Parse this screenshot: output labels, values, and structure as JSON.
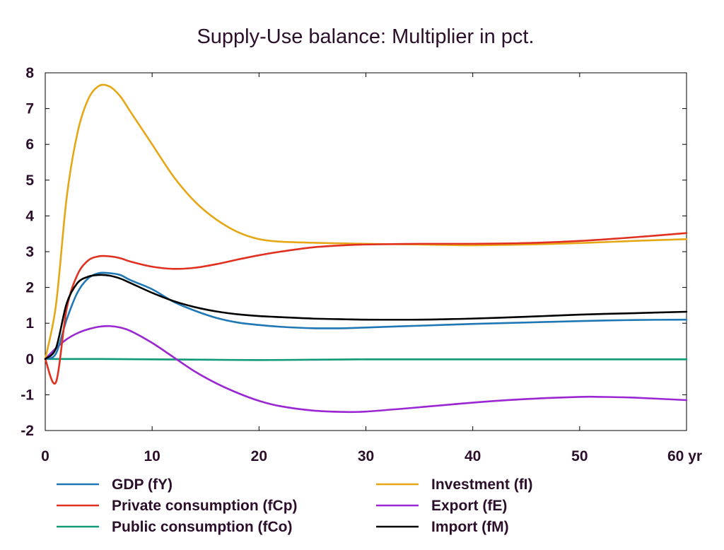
{
  "chart_data": {
    "type": "line",
    "title": "Supply-Use balance: Multiplier in pct.",
    "xlabel": "",
    "ylabel": "",
    "xlim": [
      0,
      60
    ],
    "ylim": [
      -2,
      8
    ],
    "x_ticks": [
      0,
      10,
      20,
      30,
      40,
      50,
      60
    ],
    "x_tick_labels": [
      "0",
      "10",
      "20",
      "30",
      "40",
      "50",
      "60 yr"
    ],
    "y_ticks": [
      -2,
      -1,
      0,
      1,
      2,
      3,
      4,
      5,
      6,
      7,
      8
    ],
    "y_tick_labels": [
      "-2",
      "-1",
      "0",
      "1",
      "2",
      "3",
      "4",
      "5",
      "6",
      "7",
      "8"
    ],
    "grid": false,
    "legend_position": "bottom",
    "series": [
      {
        "name": "GDP (fY)",
        "color": "#1f77b4",
        "x": [
          0,
          1,
          2,
          3,
          4,
          5,
          6,
          7,
          8,
          10,
          12,
          14,
          16,
          18,
          20,
          22,
          25,
          28,
          30,
          35,
          40,
          45,
          50,
          55,
          60
        ],
        "y": [
          0,
          0.15,
          1.1,
          1.85,
          2.25,
          2.4,
          2.4,
          2.35,
          2.2,
          1.95,
          1.6,
          1.35,
          1.15,
          1.02,
          0.95,
          0.9,
          0.86,
          0.86,
          0.88,
          0.93,
          0.98,
          1.02,
          1.06,
          1.09,
          1.1
        ]
      },
      {
        "name": "Investment (fI)",
        "color": "#e5a716",
        "x": [
          0,
          1,
          2,
          3,
          4,
          5,
          6,
          7,
          8,
          10,
          12,
          14,
          16,
          18,
          20,
          22,
          25,
          28,
          30,
          35,
          40,
          45,
          50,
          55,
          60
        ],
        "y": [
          0,
          1.5,
          4.5,
          6.3,
          7.25,
          7.63,
          7.62,
          7.35,
          6.9,
          6.0,
          5.1,
          4.4,
          3.9,
          3.55,
          3.35,
          3.28,
          3.25,
          3.23,
          3.22,
          3.2,
          3.18,
          3.2,
          3.24,
          3.3,
          3.35
        ]
      },
      {
        "name": "Private consumption (fCp)",
        "color": "#e03020",
        "x": [
          0,
          1,
          2,
          3,
          4,
          5,
          6,
          7,
          8,
          10,
          12,
          14,
          16,
          18,
          20,
          22,
          25,
          28,
          30,
          35,
          40,
          45,
          50,
          55,
          60
        ],
        "y": [
          0,
          -0.65,
          1.4,
          2.35,
          2.75,
          2.87,
          2.87,
          2.82,
          2.72,
          2.58,
          2.52,
          2.55,
          2.65,
          2.78,
          2.9,
          3.0,
          3.12,
          3.18,
          3.2,
          3.22,
          3.22,
          3.24,
          3.3,
          3.4,
          3.52
        ]
      },
      {
        "name": "Export (fE)",
        "color": "#9b27d3",
        "x": [
          0,
          1,
          2,
          3,
          4,
          5,
          6,
          7,
          8,
          10,
          12,
          14,
          16,
          18,
          20,
          22,
          25,
          28,
          30,
          35,
          40,
          45,
          50,
          52,
          55,
          60
        ],
        "y": [
          0,
          0.3,
          0.55,
          0.72,
          0.83,
          0.9,
          0.92,
          0.88,
          0.78,
          0.45,
          0.05,
          -0.35,
          -0.68,
          -0.95,
          -1.17,
          -1.32,
          -1.44,
          -1.48,
          -1.47,
          -1.35,
          -1.22,
          -1.12,
          -1.06,
          -1.06,
          -1.08,
          -1.15
        ]
      },
      {
        "name": "Public consumption (fCo)",
        "color": "#109a78",
        "x": [
          0,
          5,
          10,
          15,
          20,
          25,
          30,
          40,
          50,
          60
        ],
        "y": [
          0,
          0,
          -0.01,
          -0.02,
          -0.03,
          -0.02,
          -0.01,
          -0.01,
          -0.01,
          -0.01
        ]
      },
      {
        "name": "Import (fM)",
        "color": "#000000",
        "x": [
          0,
          1,
          2,
          3,
          4,
          5,
          6,
          7,
          8,
          10,
          12,
          14,
          16,
          18,
          20,
          22,
          25,
          28,
          30,
          35,
          40,
          45,
          50,
          55,
          60
        ],
        "y": [
          0,
          0.3,
          1.55,
          2.12,
          2.3,
          2.35,
          2.33,
          2.25,
          2.12,
          1.85,
          1.62,
          1.45,
          1.33,
          1.25,
          1.2,
          1.17,
          1.13,
          1.11,
          1.1,
          1.1,
          1.13,
          1.18,
          1.24,
          1.28,
          1.32
        ]
      }
    ],
    "legend_order": [
      0,
      1,
      2,
      3,
      4,
      5
    ]
  }
}
